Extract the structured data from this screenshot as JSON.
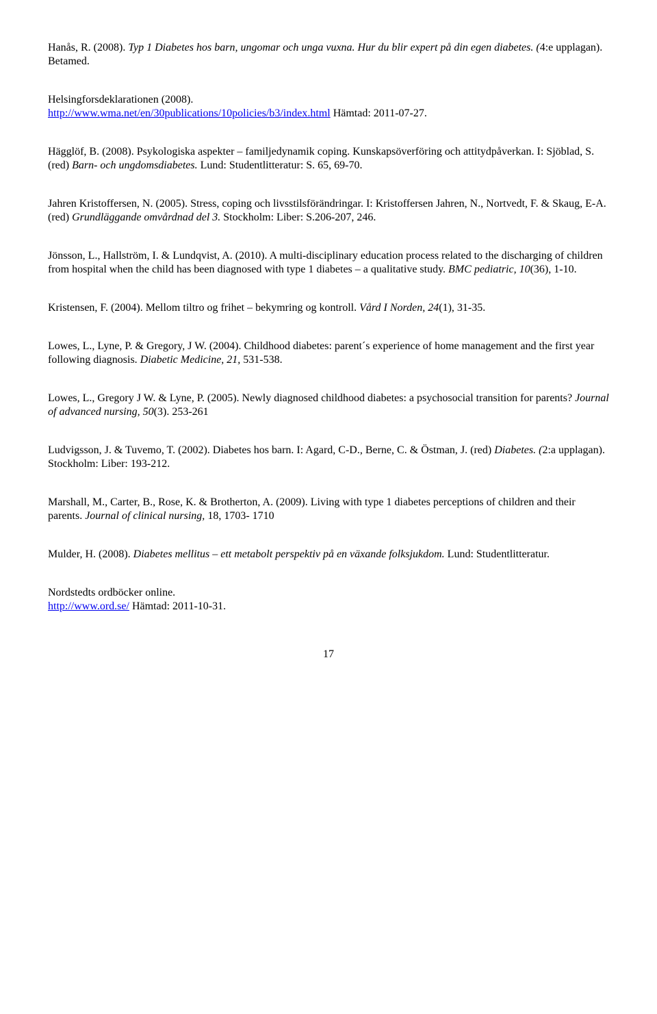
{
  "colors": {
    "text": "#000000",
    "background": "#ffffff",
    "link": "#0000ee"
  },
  "typography": {
    "font_family": "Times New Roman",
    "base_size_pt": 12,
    "italic_style": "italic"
  },
  "references": {
    "r1": {
      "a": "Hanås, R. (2008). ",
      "i": "Typ 1 Diabetes hos barn, ungomar och unga vuxna. Hur du blir expert på din egen diabetes. (",
      "b": "4:e upplagan). Betamed."
    },
    "r2": {
      "a": "Helsingforsdeklarationen (2008).",
      "link_text": "http://www.wma.net/en/30publications/10policies/b3/index.html",
      "b": " Hämtad: 2011-07-27."
    },
    "r3": {
      "a": "Hägglöf, B. (2008). Psykologiska aspekter – familjedynamik coping. Kunskapsöverföring och attitydpåverkan. I: Sjöblad, S. (red) ",
      "i": "Barn- och ungdomsdiabetes.",
      "b": " Lund: Studentlitteratur: S. 65, 69-70."
    },
    "r4": {
      "a": "Jahren Kristoffersen, N. (2005). Stress, coping och livsstilsförändringar. I: Kristoffersen Jahren, N., Nortvedt, F. & Skaug, E-A. (red) ",
      "i": "Grundläggande omvårdnad del 3.",
      "b": " Stockholm: Liber: S.206-207, 246."
    },
    "r5": {
      "a": "Jönsson, L., Hallström, I. & Lundqvist, A. (2010). A multi-disciplinary education process related to the discharging of children from hospital when the child has been diagnosed with type 1 diabetes – a qualitative study. ",
      "i": "BMC pediatric, 10",
      "b": "(36), 1-10."
    },
    "r6": {
      "a": "Kristensen, F. (2004). Mellom tiltro og frihet – bekymring og kontroll. ",
      "i": "Vård I Norden, 24",
      "b": "(1), 31-35."
    },
    "r7": {
      "a": "Lowes, L., Lyne, P. & Gregory, J W. (2004). Childhood diabetes: parent´s experience of home management and the first year following diagnosis. ",
      "i": "Diabetic Medicine, 21,",
      "b": " 531-538."
    },
    "r8": {
      "a": "Lowes, L., Gregory J W. & Lyne, P. (2005). Newly diagnosed childhood diabetes: a psychosocial transition for parents? ",
      "i": "Journal of advanced nursing, 50",
      "b": "(3). 253-261"
    },
    "r9": {
      "a": "Ludvigsson, J. & Tuvemo, T. (2002). Diabetes hos barn. I: Agard, C-D., Berne, C. & Östman, J. (red) ",
      "i": "Diabetes. (",
      "b": "2:a upplagan). Stockholm: Liber: 193-212."
    },
    "r10": {
      "a": "Marshall, M., Carter, B., Rose, K. & Brotherton, A. (2009). Living with type 1 diabetes perceptions of children and their parents. ",
      "i": "Journal of clinical nursing,",
      "b": " 18, 1703- 1710"
    },
    "r11": {
      "a": "Mulder, H. (2008). ",
      "i": "Diabetes mellitus – ett metabolt perspektiv på en växande folksjukdom.",
      "b": " Lund: Studentlitteratur."
    },
    "r12": {
      "a": "Nordstedts ordböcker online.",
      "link_text": "http://www.ord.se/",
      "b": " Hämtad: 2011-10-31."
    }
  },
  "page_number": "17"
}
